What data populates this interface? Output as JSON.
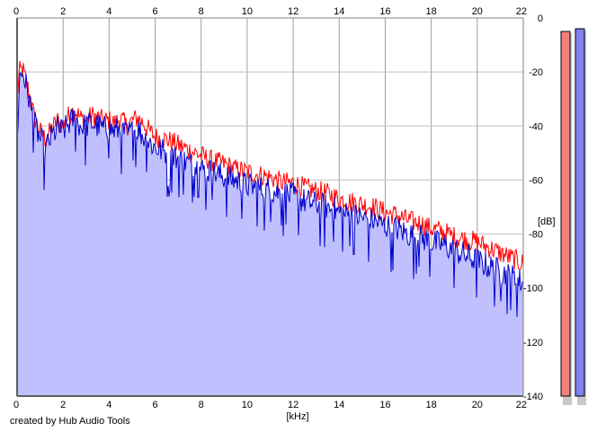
{
  "footer": {
    "credit": "created by Hub Audio Tools"
  },
  "meters": [
    {
      "channel": "left",
      "color": "#f08080",
      "level_db": -5
    },
    {
      "channel": "right",
      "color": "#8080f0",
      "level_db": -4
    }
  ],
  "chart_data": {
    "type": "area",
    "title": "",
    "xlabel": "[kHz]",
    "ylabel": "[dB]",
    "xlim": [
      0,
      22
    ],
    "ylim": [
      -140,
      0
    ],
    "grid": true,
    "x_ticks": [
      0,
      2,
      4,
      6,
      8,
      10,
      12,
      14,
      16,
      18,
      20,
      22
    ],
    "y_ticks": [
      0,
      -20,
      -40,
      -60,
      -80,
      -100,
      -120,
      -140
    ],
    "fill_color": "#c0c0ff",
    "series": [
      {
        "color": "#ff0000",
        "x": [
          0,
          0.1,
          0.25,
          0.5,
          0.75,
          1,
          1.25,
          1.5,
          1.75,
          2,
          2.25,
          2.5,
          2.75,
          3,
          3.25,
          3.5,
          3.75,
          4,
          4.25,
          4.5,
          4.75,
          5,
          5.25,
          5.5,
          5.75,
          6,
          6.5,
          7,
          7.5,
          8,
          8.5,
          9,
          9.5,
          10,
          10.5,
          11,
          11.5,
          12,
          12.5,
          13,
          13.5,
          14,
          14.5,
          15,
          15.5,
          16,
          16.5,
          17,
          17.5,
          18,
          18.5,
          19,
          19.5,
          20,
          20.5,
          21,
          21.5,
          22
        ],
        "y": [
          -30,
          -20,
          -19,
          -27,
          -37,
          -42,
          -45,
          -41,
          -38,
          -40,
          -36,
          -34,
          -37,
          -38,
          -36,
          -37,
          -38,
          -38,
          -39,
          -37,
          -40,
          -38,
          -37,
          -39,
          -42,
          -44,
          -45,
          -47,
          -49,
          -51,
          -53,
          -54,
          -56,
          -57,
          -58,
          -59,
          -61,
          -61,
          -63,
          -64,
          -65,
          -67,
          -68,
          -69,
          -70,
          -72,
          -73,
          -75,
          -76,
          -78,
          -79,
          -81,
          -82,
          -83,
          -85,
          -87,
          -89,
          -91
        ]
      },
      {
        "color": "#0000cc",
        "x": [
          0,
          0.1,
          0.25,
          0.5,
          0.75,
          1,
          1.25,
          1.5,
          1.75,
          2,
          2.25,
          2.5,
          2.75,
          3,
          3.25,
          3.5,
          3.75,
          4,
          4.25,
          4.5,
          4.75,
          5,
          5.25,
          5.5,
          5.75,
          6,
          6.5,
          7,
          7.5,
          8,
          8.5,
          9,
          9.5,
          10,
          10.5,
          11,
          11.5,
          12,
          12.5,
          13,
          13.5,
          14,
          14.5,
          15,
          15.5,
          16,
          16.5,
          17,
          17.5,
          18,
          18.5,
          19,
          19.5,
          20,
          20.5,
          21,
          21.5,
          22
        ],
        "y": [
          -48,
          -22,
          -20,
          -29,
          -39,
          -45,
          -48,
          -44,
          -41,
          -42,
          -39,
          -37,
          -40,
          -40,
          -39,
          -40,
          -41,
          -41,
          -42,
          -41,
          -43,
          -42,
          -41,
          -44,
          -46,
          -48,
          -50,
          -52,
          -54,
          -56,
          -57,
          -59,
          -60,
          -62,
          -63,
          -64,
          -65,
          -66,
          -68,
          -69,
          -70,
          -72,
          -73,
          -74,
          -75,
          -77,
          -78,
          -80,
          -81,
          -83,
          -84,
          -86,
          -88,
          -90,
          -92,
          -94,
          -96,
          -98
        ]
      }
    ]
  }
}
